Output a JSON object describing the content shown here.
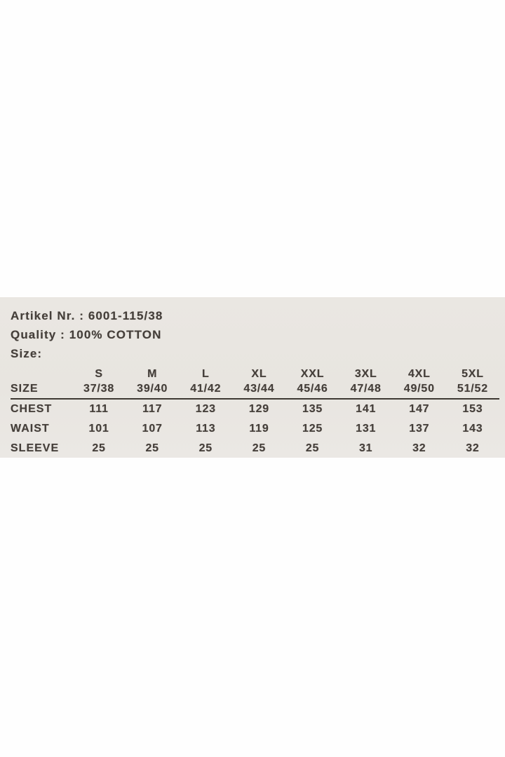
{
  "label": {
    "background_color": "#e9e6e1",
    "text_color": "#453f3a",
    "artikel_line": "Artikel Nr. : 6001-115/38",
    "quality_line": "Quality : 100% COTTON",
    "size_heading": "Size:"
  },
  "chart_data": {
    "type": "table",
    "title": "Garment size chart",
    "corner_label": "SIZE",
    "columns": [
      {
        "size": "S",
        "range": "37/38"
      },
      {
        "size": "M",
        "range": "39/40"
      },
      {
        "size": "L",
        "range": "41/42"
      },
      {
        "size": "XL",
        "range": "43/44"
      },
      {
        "size": "XXL",
        "range": "45/46"
      },
      {
        "size": "3XL",
        "range": "47/48"
      },
      {
        "size": "4XL",
        "range": "49/50"
      },
      {
        "size": "5XL",
        "range": "51/52"
      }
    ],
    "rows": [
      {
        "label": "CHEST",
        "values": [
          "111",
          "117",
          "123",
          "129",
          "135",
          "141",
          "147",
          "153"
        ]
      },
      {
        "label": "WAIST",
        "values": [
          "101",
          "107",
          "113",
          "119",
          "125",
          "131",
          "137",
          "143"
        ]
      },
      {
        "label": "SLEEVE",
        "values": [
          "25",
          "25",
          "25",
          "25",
          "25",
          "31",
          "32",
          "32"
        ]
      }
    ]
  }
}
